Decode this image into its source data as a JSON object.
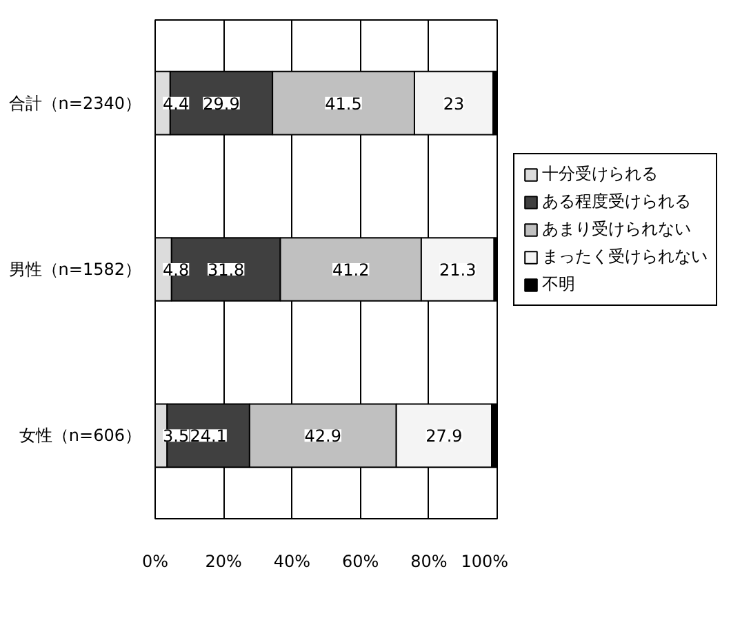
{
  "chart_data": {
    "type": "bar",
    "orientation": "horizontal",
    "stacked": true,
    "categories": [
      "合計（n=2340）",
      "男性（n=1582）",
      "女性（n=606）"
    ],
    "series": [
      {
        "name": "十分受けられる",
        "color": "#dcdcdc",
        "values": [
          4.4,
          4.8,
          3.5
        ],
        "value_labels": [
          "4.4",
          "4.8",
          "3.5"
        ]
      },
      {
        "name": "ある程度受けられる",
        "color": "#404040",
        "values": [
          29.9,
          31.8,
          24.1
        ],
        "value_labels": [
          "29.9",
          "31.8",
          "24.1"
        ]
      },
      {
        "name": "あまり受けられない",
        "color": "#c0c0c0",
        "values": [
          41.5,
          41.2,
          42.9
        ],
        "value_labels": [
          "41.5",
          "41.2",
          "42.9"
        ]
      },
      {
        "name": "まったく受けられない",
        "color": "#f4f4f4",
        "values": [
          23,
          21.3,
          27.9
        ],
        "value_labels": [
          "23",
          "21.3",
          "27.9"
        ]
      },
      {
        "name": "不明",
        "color": "#000000",
        "values": [
          1.2,
          0.9,
          1.6
        ],
        "value_labels": [
          null,
          null,
          null
        ]
      }
    ],
    "xlim": [
      0,
      100
    ],
    "xticks": [
      {
        "value": 0,
        "label": "0%"
      },
      {
        "value": 20,
        "label": "20%"
      },
      {
        "value": 40,
        "label": "40%"
      },
      {
        "value": 60,
        "label": "60%"
      },
      {
        "value": 80,
        "label": "80%"
      },
      {
        "value": 100,
        "label": "100%"
      }
    ],
    "grid": "x",
    "legend": "right"
  }
}
